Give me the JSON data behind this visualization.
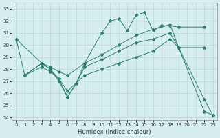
{
  "xlabel": "Humidex (Indice chaleur)",
  "bg_color": "#d6eef0",
  "line_color": "#2e7d6e",
  "grid_color": "#b8d8d8",
  "xlim": [
    -0.5,
    23.5
  ],
  "ylim": [
    23.8,
    33.5
  ],
  "yticks": [
    24,
    25,
    26,
    27,
    28,
    29,
    30,
    31,
    32,
    33
  ],
  "xticks": [
    0,
    1,
    2,
    3,
    4,
    5,
    6,
    7,
    8,
    9,
    10,
    11,
    12,
    13,
    14,
    15,
    16,
    17,
    18,
    19,
    20,
    21,
    22,
    23
  ],
  "line1_x": [
    0,
    1,
    3,
    4,
    5,
    6,
    7,
    8,
    10,
    11,
    12,
    13,
    14,
    15,
    16,
    17,
    18,
    19,
    22
  ],
  "line1_y": [
    30.5,
    27.5,
    28.5,
    28.0,
    27.0,
    25.7,
    26.8,
    28.5,
    31.0,
    32.0,
    32.2,
    31.2,
    32.5,
    32.7,
    31.2,
    31.6,
    31.6,
    31.5,
    31.5
  ],
  "line2_x": [
    0,
    3,
    4,
    5,
    6,
    8,
    10,
    12,
    14,
    16,
    18,
    19,
    22
  ],
  "line2_y": [
    30.5,
    28.5,
    28.2,
    27.8,
    27.5,
    28.5,
    29.2,
    30.0,
    30.8,
    31.3,
    31.7,
    29.8,
    29.8
  ],
  "line3_x": [
    1,
    3,
    4,
    5,
    6,
    7,
    8,
    10,
    12,
    14,
    16,
    18,
    19,
    22,
    23
  ],
  "line3_y": [
    27.5,
    28.5,
    28.0,
    27.2,
    25.7,
    26.8,
    28.2,
    28.8,
    29.5,
    30.2,
    30.5,
    31.0,
    29.8,
    25.5,
    24.2
  ],
  "line4_x": [
    1,
    3,
    4,
    5,
    6,
    8,
    10,
    12,
    14,
    16,
    18,
    19,
    22,
    23
  ],
  "line4_y": [
    27.5,
    28.2,
    27.8,
    27.2,
    26.2,
    27.5,
    28.0,
    28.5,
    29.0,
    29.5,
    30.5,
    29.8,
    24.5,
    24.2
  ]
}
